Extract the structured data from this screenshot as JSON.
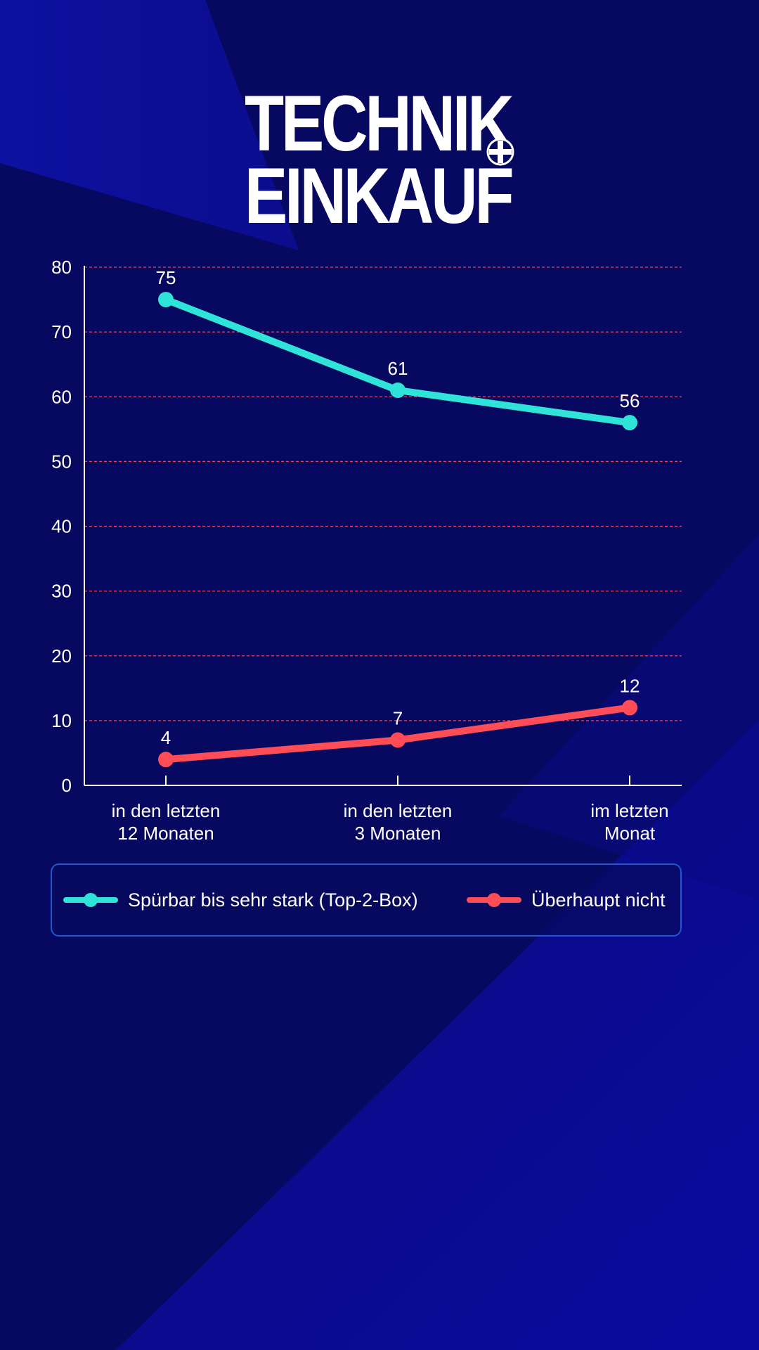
{
  "colors": {
    "background": "#07085f",
    "accent_cyan": "#2fe3d8",
    "accent_red": "#ff4d57",
    "grid_red": "#ff4d57",
    "legend_border": "#1f58cf"
  },
  "logo": {
    "line1": "TECHNIK",
    "line2": "EINKAUF",
    "plus_icon": "plus-circle-icon"
  },
  "chart_data": {
    "type": "line",
    "title": "",
    "xlabel": "",
    "ylabel": "",
    "categories": [
      "in den letzten\n12 Monaten",
      "in den letzten\n3 Monaten",
      "im letzten\nMonat"
    ],
    "series": [
      {
        "name": "Spürbar bis sehr stark (Top-2-Box)",
        "values": [
          75,
          61,
          56
        ],
        "color": "#2fe3d8"
      },
      {
        "name": "Überhaupt nicht",
        "values": [
          4,
          7,
          12
        ],
        "color": "#ff4d57"
      }
    ],
    "ylim": [
      0,
      80
    ],
    "yticks": [
      0,
      10,
      20,
      30,
      40,
      50,
      60,
      70,
      80
    ],
    "grid": true,
    "legend": "bottom"
  }
}
